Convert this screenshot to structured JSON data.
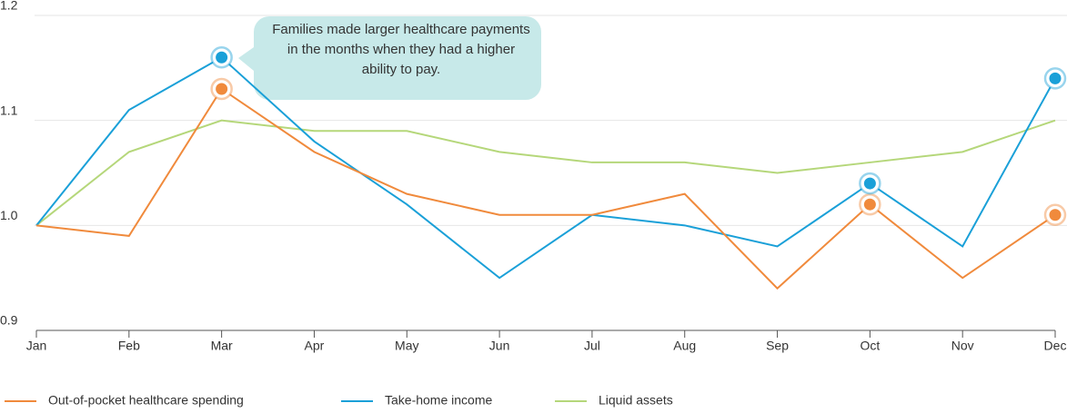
{
  "chart_data": {
    "type": "line",
    "categories": [
      "Jan",
      "Feb",
      "Mar",
      "Apr",
      "May",
      "Jun",
      "Jul",
      "Aug",
      "Sep",
      "Oct",
      "Nov",
      "Dec"
    ],
    "series": [
      {
        "name": "Out-of-pocket healthcare spending",
        "color": "#f08a3c",
        "values": [
          1.0,
          0.99,
          1.13,
          1.07,
          1.03,
          1.01,
          1.01,
          1.03,
          0.94,
          1.02,
          0.95,
          1.01
        ]
      },
      {
        "name": "Take-home income",
        "color": "#1aa0d8",
        "values": [
          1.0,
          1.11,
          1.16,
          1.08,
          1.02,
          0.95,
          1.01,
          1.0,
          0.98,
          1.04,
          0.98,
          1.14
        ]
      },
      {
        "name": "Liquid assets",
        "color": "#b5d77a",
        "values": [
          1.0,
          1.07,
          1.1,
          1.09,
          1.09,
          1.07,
          1.06,
          1.06,
          1.05,
          1.06,
          1.07,
          1.1
        ]
      }
    ],
    "highlight": [
      2,
      9,
      11
    ],
    "highlight_series": [
      0,
      1
    ],
    "ylim": [
      0.9,
      1.2
    ],
    "yticks": [
      {
        "value": 0.9,
        "label": "0.9"
      },
      {
        "value": 1.0,
        "label": "1.0"
      },
      {
        "value": 1.1,
        "label": "1.1"
      },
      {
        "value": 1.2,
        "label": "1.2"
      }
    ],
    "grid": true,
    "annotation": "Families made larger healthcare payments in the months when they had a higher ability to pay."
  }
}
